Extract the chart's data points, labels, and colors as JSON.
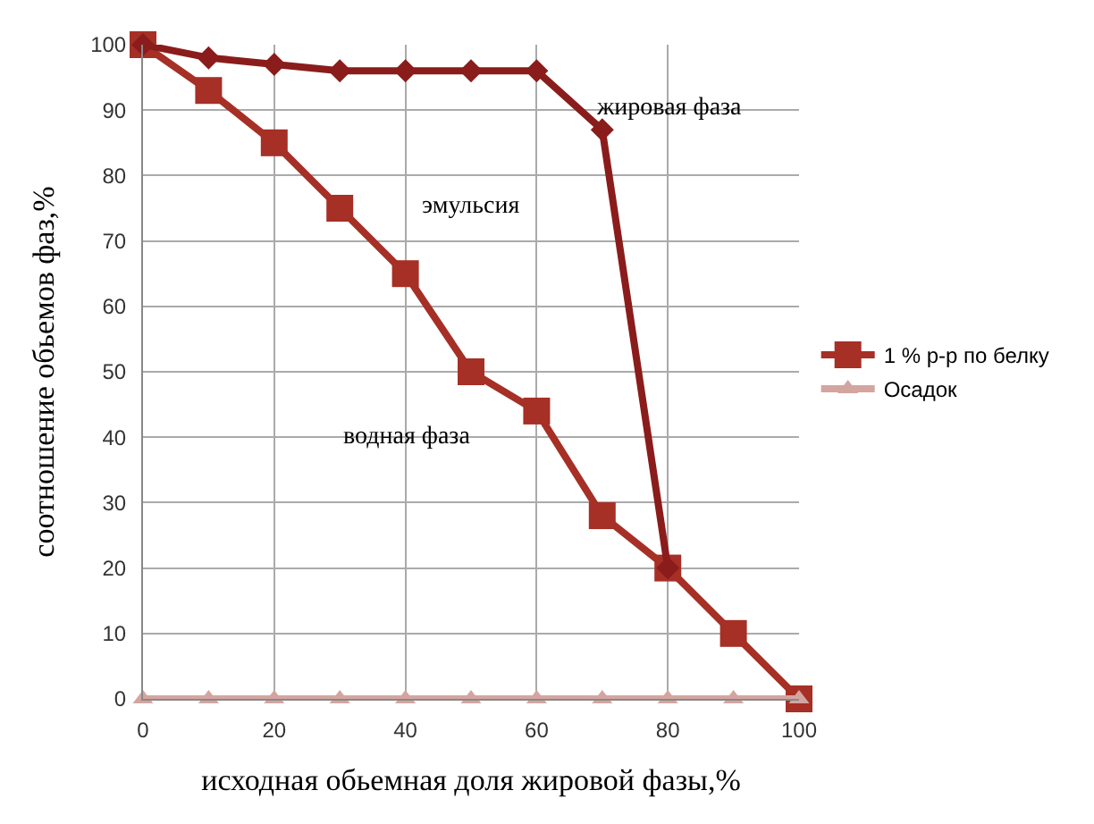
{
  "chart_data": {
    "type": "line",
    "xlabel": "исходная обьемная доля жировой фазы,%",
    "ylabel": "соотношение обьемов фаз,%",
    "x": [
      0,
      10,
      20,
      30,
      40,
      50,
      60,
      70,
      80,
      90,
      100
    ],
    "series": [
      {
        "name": "1 % р-р по белку",
        "color": "#a62f26",
        "marker": "square",
        "values": [
          100,
          93,
          85,
          75,
          65,
          50,
          44,
          28,
          20,
          10,
          0
        ]
      },
      {
        "color": "#8b1c1c",
        "marker": "diamond",
        "x": [
          0,
          10,
          20,
          30,
          40,
          50,
          60,
          70,
          80
        ],
        "values": [
          100,
          98,
          97,
          96,
          96,
          96,
          96,
          87,
          20
        ]
      },
      {
        "name": "Осадок",
        "color": "#d4a5a0",
        "marker": "triangle",
        "values": [
          0,
          0,
          0,
          0,
          0,
          0,
          0,
          0,
          0,
          0,
          0
        ]
      }
    ],
    "xlim": [
      0,
      100
    ],
    "xticks": [
      0,
      20,
      40,
      60,
      80,
      100
    ],
    "ylim": [
      0,
      100
    ],
    "yticks": [
      0,
      10,
      20,
      30,
      40,
      50,
      60,
      70,
      80,
      90,
      100
    ],
    "grid": true,
    "legend": "right",
    "annotations": [
      "жировая фаза",
      "эмульсия",
      "водная фаза"
    ]
  }
}
